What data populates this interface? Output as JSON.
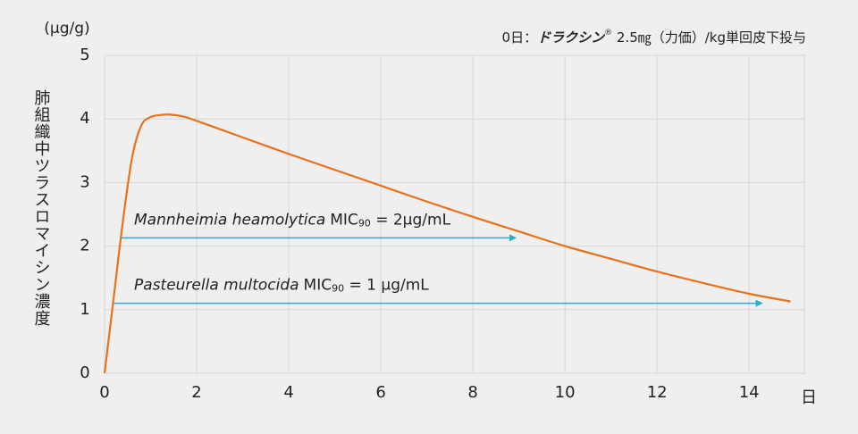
{
  "chart_data": {
    "type": "line",
    "y_unit": "(μg/g)",
    "y_axis_label": "肺組織中ツラスロマイシン濃度",
    "x_axis_label": "日",
    "subtitle": {
      "day": "0日：",
      "brand": "ドラクシン",
      "mark": "®",
      "dose": " 2.5㎎（力価）/kg単回皮下投与"
    },
    "x": [
      0,
      0.2,
      0.4,
      0.6,
      0.8,
      1,
      1.2,
      1.4,
      1.7,
      2,
      3,
      4,
      5,
      6,
      7,
      8,
      9,
      10,
      11,
      12,
      13,
      14,
      14.9
    ],
    "series": [
      {
        "color": "#e8711c",
        "values": [
          0,
          1.2,
          2.4,
          3.4,
          3.9,
          4.03,
          4.06,
          4.07,
          4.04,
          3.97,
          3.71,
          3.45,
          3.2,
          2.95,
          2.7,
          2.46,
          2.23,
          2.0,
          1.8,
          1.6,
          1.42,
          1.25,
          1.13
        ]
      }
    ],
    "xlim": [
      0,
      15.2
    ],
    "ylim": [
      0,
      5
    ],
    "xticks": [
      0,
      2,
      4,
      6,
      8,
      10,
      12,
      14
    ],
    "yticks": [
      0,
      1,
      2,
      3,
      4,
      5
    ],
    "grid": true,
    "annotations": [
      {
        "organism": "Mannheimia heamolytica",
        "metric": "MIC",
        "subscript": "90",
        "value_text": " = 2μg/mL",
        "y": 2.13,
        "x_start": 0.35,
        "x_end": 8.95,
        "color": "#2aaccc"
      },
      {
        "organism": "Pasteurella multocida",
        "metric": "MIC",
        "subscript": "90",
        "value_text": " = 1 μg/mL",
        "y": 1.1,
        "x_start": 0.2,
        "x_end": 14.3,
        "color": "#2aaccc"
      }
    ]
  }
}
